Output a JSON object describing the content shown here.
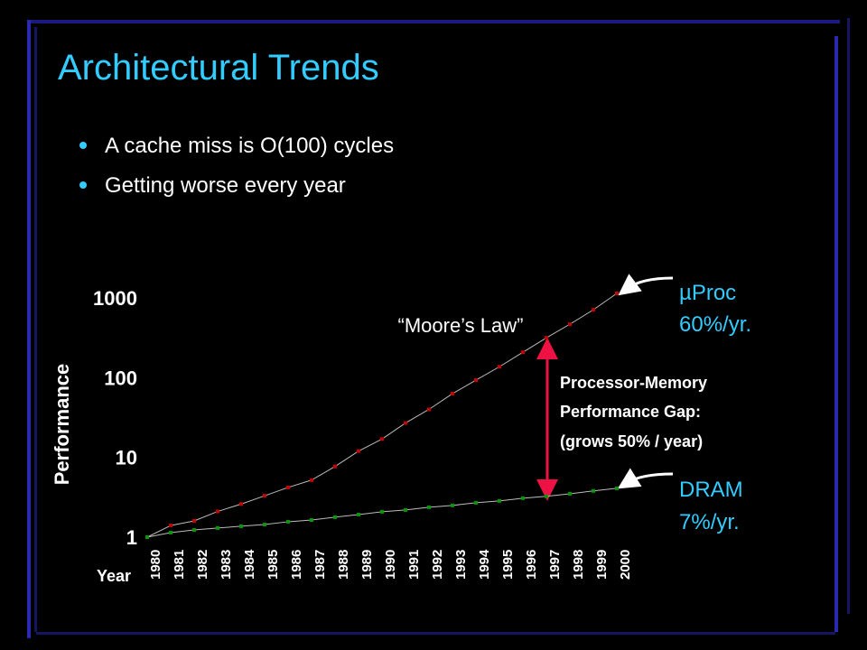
{
  "slide": {
    "title": "Architectural Trends",
    "bullets": [
      "A cache miss is O(100) cycles",
      "Getting worse every year"
    ]
  },
  "chart_data": {
    "type": "line",
    "log_scale": true,
    "y_label": "Performance",
    "x_label": "Year",
    "categories": [
      "1980",
      "1981",
      "1982",
      "1983",
      "1984",
      "1985",
      "1986",
      "1987",
      "1988",
      "1989",
      "1990",
      "1991",
      "1992",
      "1993",
      "1994",
      "1995",
      "1996",
      "1997",
      "1998",
      "1999",
      "2000"
    ],
    "series": [
      {
        "name": "µProc",
        "color": "#cc0000",
        "values": [
          1,
          1.4,
          1.6,
          2.1,
          2.6,
          3.3,
          4.2,
          5.2,
          7.7,
          12,
          17,
          27,
          40,
          63,
          93,
          137,
          208,
          316,
          468,
          710,
          1140
        ]
      },
      {
        "name": "DRAM",
        "color": "#009900",
        "values": [
          1,
          1.14,
          1.23,
          1.3,
          1.37,
          1.44,
          1.56,
          1.64,
          1.78,
          1.92,
          2.08,
          2.19,
          2.37,
          2.5,
          2.7,
          2.85,
          3.08,
          3.25,
          3.5,
          3.8,
          4.1
        ]
      }
    ],
    "ylim": [
      1,
      1000
    ],
    "yticks": [
      1,
      10,
      100,
      1000
    ],
    "annotations": {
      "moores_law": "“Moore’s Law”",
      "proc_rate": "60%/yr.",
      "dram_rate": "7%/yr.",
      "gap": [
        "Processor-Memory",
        "Performance Gap:",
        "(grows 50% / year)"
      ]
    }
  }
}
